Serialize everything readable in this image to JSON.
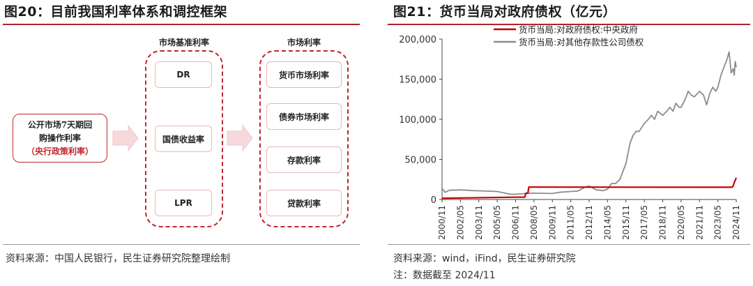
{
  "left_panel": {
    "title": "图20：目前我国利率体系和调控框架",
    "source": "资料来源：中国人民银行，民生证券研究院整理绘制",
    "policy_box": {
      "line1": "公开市场7天期回",
      "line2": "购操作利率",
      "line3": "（央行政策利率）"
    },
    "benchmark_group": {
      "label": "市场基准利率",
      "items": [
        "DR",
        "国债收益率",
        "LPR"
      ]
    },
    "market_group": {
      "label": "市场利率",
      "items": [
        "货币市场利率",
        "债券市场利率",
        "存款利率",
        "贷款利率"
      ]
    }
  },
  "right_panel": {
    "title": "图21：货币当局对政府债权（亿元）",
    "source": "资料来源：wind，iFind，民生证券研究院",
    "note": "注：数据截至 2024/11"
  },
  "colors": {
    "accent_red": "#c0262d",
    "series_red": "#c00000",
    "series_gray": "#8c8c8c"
  },
  "chart_data": {
    "type": "line",
    "title": "",
    "xlabel": "",
    "ylabel": "",
    "ylim": [
      0,
      200000
    ],
    "yticks": [
      0,
      50000,
      100000,
      150000,
      200000
    ],
    "ytick_labels": [
      "0",
      "50,000",
      "100,000",
      "150,000",
      "200,000"
    ],
    "xticks": [
      "2000/11",
      "2002/05",
      "2003/11",
      "2005/05",
      "2006/11",
      "2008/05",
      "2009/11",
      "2011/05",
      "2012/11",
      "2014/05",
      "2015/11",
      "2017/05",
      "2018/11",
      "2020/05",
      "2021/11",
      "2023/05",
      "2024/11"
    ],
    "grid": false,
    "legend_position": "top-left",
    "series": [
      {
        "name": "货币当局:对政府债权:中央政府",
        "color": "#c00000",
        "points": [
          [
            "2000/11",
            1600
          ],
          [
            "2006/11",
            2900
          ],
          [
            "2007/08",
            2900
          ],
          [
            "2007/09",
            7800
          ],
          [
            "2007/11",
            7800
          ],
          [
            "2007/12",
            15500
          ],
          [
            "2024/07",
            15300
          ],
          [
            "2024/08",
            17000
          ],
          [
            "2024/09",
            21000
          ],
          [
            "2024/10",
            24000
          ],
          [
            "2024/11",
            27000
          ]
        ]
      },
      {
        "name": "货币当局:对其他存款性公司债权",
        "color": "#8c8c8c",
        "points": [
          [
            "2000/11",
            14000
          ],
          [
            "2001/02",
            9000
          ],
          [
            "2001/06",
            11500
          ],
          [
            "2002/05",
            12000
          ],
          [
            "2003/06",
            11000
          ],
          [
            "2004/06",
            10500
          ],
          [
            "2005/05",
            10000
          ],
          [
            "2006/06",
            6500
          ],
          [
            "2006/11",
            6500
          ],
          [
            "2007/12",
            7800
          ],
          [
            "2008/05",
            7900
          ],
          [
            "2009/11",
            7500
          ],
          [
            "2010/06",
            9000
          ],
          [
            "2011/05",
            10000
          ],
          [
            "2011/12",
            10500
          ],
          [
            "2012/06",
            15000
          ],
          [
            "2012/11",
            16700
          ],
          [
            "2013/06",
            12000
          ],
          [
            "2014/01",
            11000
          ],
          [
            "2014/05",
            13000
          ],
          [
            "2014/09",
            20000
          ],
          [
            "2015/01",
            20000
          ],
          [
            "2015/05",
            25000
          ],
          [
            "2015/11",
            45000
          ],
          [
            "2016/03",
            70000
          ],
          [
            "2016/06",
            80000
          ],
          [
            "2016/09",
            85000
          ],
          [
            "2016/12",
            85000
          ],
          [
            "2017/05",
            95000
          ],
          [
            "2017/09",
            100000
          ],
          [
            "2017/12",
            105000
          ],
          [
            "2018/03",
            100000
          ],
          [
            "2018/06",
            110000
          ],
          [
            "2018/11",
            105000
          ],
          [
            "2019/03",
            110000
          ],
          [
            "2019/06",
            115000
          ],
          [
            "2019/09",
            110000
          ],
          [
            "2019/12",
            120000
          ],
          [
            "2020/03",
            115000
          ],
          [
            "2020/05",
            115000
          ],
          [
            "2020/09",
            125000
          ],
          [
            "2020/12",
            135000
          ],
          [
            "2021/03",
            130000
          ],
          [
            "2021/06",
            128000
          ],
          [
            "2021/11",
            135000
          ],
          [
            "2022/03",
            130000
          ],
          [
            "2022/06",
            118000
          ],
          [
            "2022/09",
            132000
          ],
          [
            "2022/12",
            140000
          ],
          [
            "2023/03",
            135000
          ],
          [
            "2023/05",
            140000
          ],
          [
            "2023/08",
            155000
          ],
          [
            "2023/11",
            165000
          ],
          [
            "2024/02",
            175000
          ],
          [
            "2024/04",
            184000
          ],
          [
            "2024/06",
            158000
          ],
          [
            "2024/08",
            163000
          ],
          [
            "2024/09",
            155000
          ],
          [
            "2024/10",
            172000
          ],
          [
            "2024/11",
            165000
          ]
        ]
      }
    ]
  }
}
